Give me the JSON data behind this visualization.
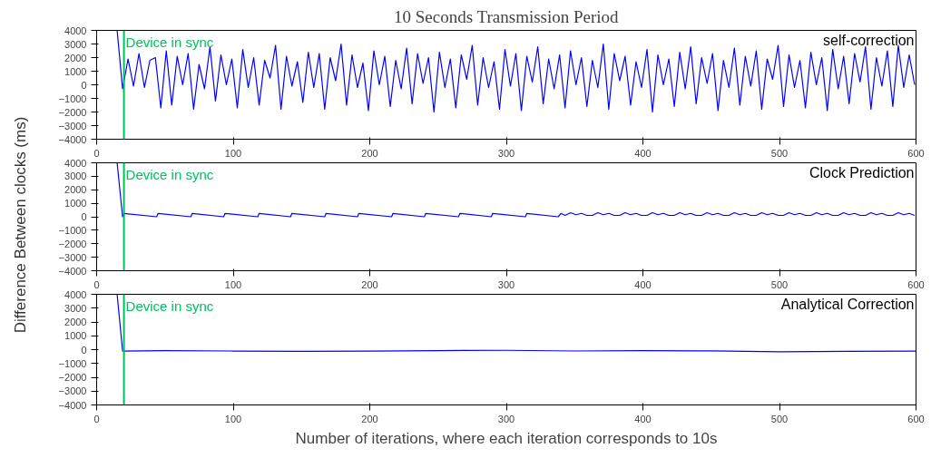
{
  "chart_data": [
    {
      "type": "line",
      "title": "10 Seconds Transmission Period",
      "annotations": [
        "self-correction"
      ],
      "x": [
        15,
        19,
        23,
        27,
        31,
        35,
        39,
        43,
        47,
        51,
        55,
        59,
        63,
        67,
        71,
        75,
        79,
        83,
        87,
        91,
        95,
        99,
        103,
        107,
        111,
        115,
        119,
        123,
        127,
        131,
        135,
        139,
        143,
        147,
        151,
        155,
        159,
        163,
        167,
        171,
        175,
        179,
        183,
        187,
        191,
        195,
        199,
        203,
        207,
        211,
        215,
        219,
        223,
        227,
        231,
        235,
        239,
        243,
        247,
        251,
        255,
        259,
        263,
        267,
        271,
        275,
        279,
        283,
        287,
        291,
        295,
        299,
        303,
        307,
        311,
        315,
        319,
        323,
        327,
        331,
        335,
        339,
        343,
        347,
        351,
        355,
        359,
        363,
        367,
        371,
        375,
        379,
        383,
        387,
        391,
        395,
        399,
        403,
        407,
        411,
        415,
        419,
        423,
        427,
        431,
        435,
        439,
        443,
        447,
        451,
        455,
        459,
        463,
        467,
        471,
        475,
        479,
        483,
        487,
        491,
        495,
        499,
        503,
        507,
        511,
        515,
        519,
        523,
        527,
        531,
        535,
        539,
        543,
        547,
        551,
        555,
        559,
        563,
        567,
        571,
        575,
        579,
        583,
        587,
        591,
        595,
        599
      ],
      "series": [
        {
          "color": "#0000ff",
          "values": [
            4000,
            -300,
            1900,
            -100,
            2300,
            -200,
            1800,
            2000,
            -1700,
            2500,
            -1500,
            2100,
            0,
            2300,
            -1800,
            1500,
            -300,
            2800,
            -1200,
            2200,
            0,
            1900,
            -1700,
            2600,
            -200,
            2000,
            -1500,
            1800,
            500,
            2900,
            -1800,
            2100,
            -100,
            1700,
            -1300,
            2400,
            -200,
            2300,
            -1800,
            2000,
            300,
            3000,
            -1500,
            2200,
            -200,
            1600,
            -1900,
            2500,
            0,
            2100,
            -1600,
            1800,
            -300,
            2700,
            -1400,
            2300,
            100,
            2000,
            -2000,
            2400,
            -200,
            1900,
            -1700,
            2200,
            400,
            2900,
            -1500,
            2000,
            -200,
            1700,
            -1800,
            2600,
            -100,
            2300,
            -1900,
            2100,
            200,
            2800,
            -1400,
            1900,
            -300,
            2200,
            -1700,
            2500,
            0,
            2000,
            -1600,
            1800,
            -200,
            3000,
            -1800,
            2300,
            300,
            2100,
            -1500,
            1700,
            -200,
            2600,
            -2000,
            2200,
            0,
            1900,
            -1600,
            2400,
            -300,
            2800,
            -1400,
            2000,
            100,
            2300,
            -1900,
            1800,
            -200,
            2700,
            -1500,
            2100,
            -100,
            2500,
            -1800,
            1900,
            400,
            2900,
            -1600,
            2200,
            -200,
            1800,
            -1700,
            2400,
            0,
            2000,
            -1900,
            2600,
            -300,
            2100,
            -1400,
            2300,
            200,
            2800,
            -1800,
            2000,
            -100,
            2500,
            -1600,
            2900,
            -200,
            2200,
            0
          ]
        }
      ],
      "xlim": [
        0,
        600
      ],
      "ylim": [
        -4000,
        4000
      ],
      "xticks": [
        0,
        100,
        200,
        300,
        400,
        500,
        600
      ],
      "yticks": [
        -4000,
        -3000,
        -2000,
        -1000,
        0,
        1000,
        2000,
        3000,
        4000
      ],
      "ref_lines": [
        {
          "axis": "x",
          "value": 20,
          "label": "Device in sync",
          "color": "#00c060"
        }
      ],
      "grid": false,
      "marker": "none",
      "line_style": "solid"
    },
    {
      "type": "line",
      "ylabel": "Difference Between clocks (ms)",
      "annotations": [
        "Clock Prediction"
      ],
      "x": [
        15,
        19,
        20,
        44,
        45,
        69,
        70,
        93,
        94,
        118,
        119,
        142,
        143,
        167,
        168,
        191,
        192,
        216,
        217,
        240,
        241,
        265,
        266,
        289,
        290,
        314,
        315,
        338,
        340,
        343,
        347,
        351,
        355,
        359,
        363,
        367,
        371,
        375,
        379,
        383,
        387,
        391,
        395,
        399,
        403,
        407,
        411,
        415,
        419,
        423,
        427,
        431,
        435,
        439,
        443,
        447,
        451,
        455,
        459,
        463,
        467,
        471,
        475,
        479,
        483,
        487,
        491,
        495,
        499,
        503,
        507,
        511,
        515,
        519,
        523,
        527,
        531,
        535,
        539,
        543,
        547,
        551,
        555,
        559,
        563,
        567,
        571,
        575,
        579,
        583,
        587,
        591,
        595,
        599
      ],
      "series": [
        {
          "color": "#0000ff",
          "values": [
            4000,
            0,
            250,
            0,
            250,
            0,
            250,
            0,
            250,
            0,
            250,
            0,
            250,
            0,
            250,
            0,
            250,
            0,
            250,
            0,
            250,
            0,
            250,
            0,
            250,
            0,
            250,
            0,
            250,
            100,
            300,
            150,
            250,
            100,
            100,
            300,
            150,
            250,
            100,
            100,
            300,
            150,
            250,
            100,
            100,
            300,
            150,
            250,
            100,
            100,
            300,
            150,
            250,
            100,
            100,
            300,
            150,
            250,
            100,
            100,
            300,
            150,
            250,
            100,
            100,
            300,
            150,
            250,
            100,
            100,
            300,
            150,
            250,
            100,
            100,
            300,
            150,
            250,
            100,
            100,
            300,
            150,
            250,
            100,
            100,
            300,
            150,
            250,
            100,
            100,
            300,
            150,
            250,
            100
          ]
        }
      ],
      "xlim": [
        0,
        600
      ],
      "ylim": [
        -4000,
        4000
      ],
      "xticks": [
        0,
        100,
        200,
        300,
        400,
        500,
        600
      ],
      "yticks": [
        -4000,
        -3000,
        -2000,
        -1000,
        0,
        1000,
        2000,
        3000,
        4000
      ],
      "ref_lines": [
        {
          "axis": "x",
          "value": 20,
          "label": "Device in sync",
          "color": "#00c060"
        }
      ],
      "grid": false,
      "marker": "none",
      "line_style": "solid"
    },
    {
      "type": "line",
      "xlabel": "Number of iterations, where each iteration corresponds to 10s",
      "annotations": [
        "Analytical Correction"
      ],
      "x": [
        15,
        19,
        50,
        100,
        150,
        200,
        250,
        300,
        350,
        400,
        450,
        500,
        550,
        600
      ],
      "series": [
        {
          "color": "#0000ff",
          "values": [
            4000,
            -100,
            -80,
            -100,
            -120,
            -100,
            -70,
            -50,
            -100,
            -80,
            -90,
            -150,
            -120,
            -100
          ]
        }
      ],
      "xlim": [
        0,
        600
      ],
      "ylim": [
        -4000,
        4000
      ],
      "xticks": [
        0,
        100,
        200,
        300,
        400,
        500,
        600
      ],
      "yticks": [
        -4000,
        -3000,
        -2000,
        -1000,
        0,
        1000,
        2000,
        3000,
        4000
      ],
      "ref_lines": [
        {
          "axis": "x",
          "value": 20,
          "label": "Device in sync",
          "color": "#00c060"
        }
      ],
      "grid": false,
      "marker": "none",
      "line_style": "solid"
    }
  ]
}
